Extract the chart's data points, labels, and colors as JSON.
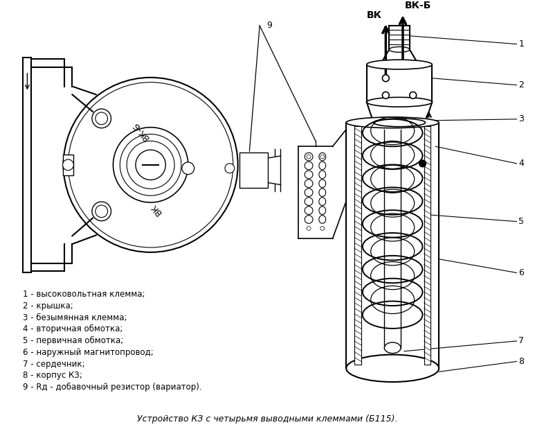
{
  "title": "Устройство КЗ с четырьмя выводными клеммами (Б115).",
  "background_color": "#ffffff",
  "legend_items": [
    "1 - высоковольтная клемма;",
    "2 - крышка;",
    "3 - безымянная клемма;",
    "4 - вторичная обмотка;",
    "5 - первичная обмотка;",
    "6 - наружный магнитопровод;",
    "7 - сердечник;",
    "8 - корпус КЗ;",
    "9 - Rд - добавочный резистор (вариатор)."
  ],
  "label_vkb": "ВК-Б",
  "label_vk": "ВК",
  "label_9": "9"
}
